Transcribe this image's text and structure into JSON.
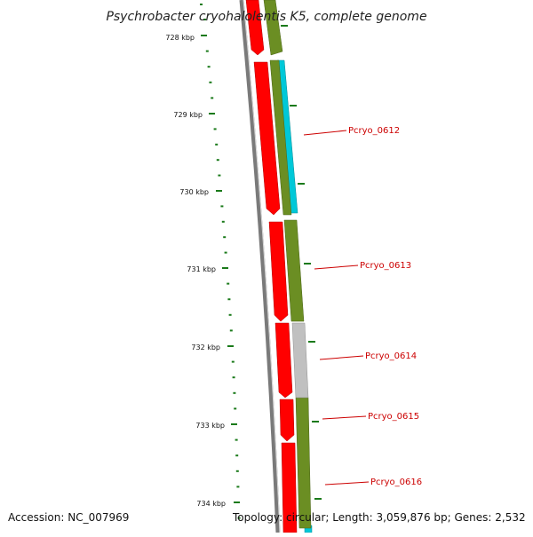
{
  "title": "Psychrobacter cryohalolentis K5, complete genome",
  "footer": {
    "accession": "Accession: NC_007969",
    "topology": "Topology: circular; Length: 3,059,876 bp; Genes: 2,532"
  },
  "colors": {
    "cds_forward": "#ff0000",
    "cds_reverse_frame": "#6b8e23",
    "cds_cyan": "#00c8d8",
    "cds_gray": "#c0c0c0",
    "backbone": "#7a7a7a",
    "tick": "#1a7a1a",
    "gene_label": "#cc0000"
  },
  "ruler": {
    "unit": "kbp",
    "ticks": [
      {
        "label": "728 kbp",
        "kbp": 728
      },
      {
        "label": "729 kbp",
        "kbp": 729
      },
      {
        "label": "730 kbp",
        "kbp": 730
      },
      {
        "label": "731 kbp",
        "kbp": 731
      },
      {
        "label": "732 kbp",
        "kbp": 732
      },
      {
        "label": "733 kbp",
        "kbp": 733
      },
      {
        "label": "734 kbp",
        "kbp": 734
      }
    ]
  },
  "genes": [
    {
      "name": "Pcryo_0612"
    },
    {
      "name": "Pcryo_0613"
    },
    {
      "name": "Pcryo_0614"
    },
    {
      "name": "Pcryo_0615"
    },
    {
      "name": "Pcryo_0616"
    }
  ]
}
